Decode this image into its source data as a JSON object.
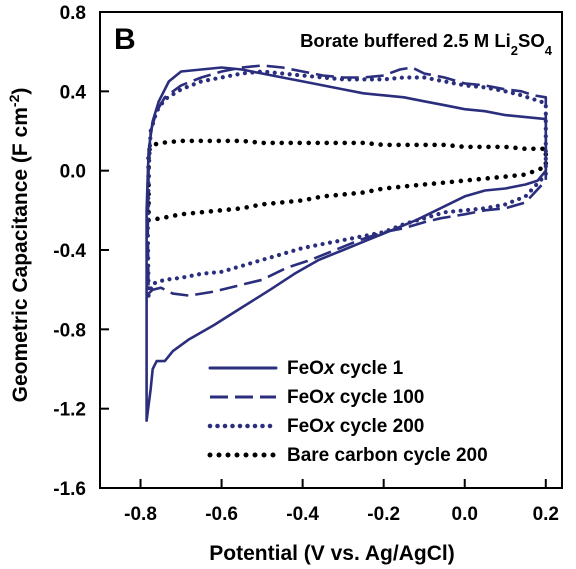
{
  "chart_data": {
    "type": "line",
    "panel_label": "B",
    "annotation_main": "Borate buffered 2.5 M Li",
    "annotation_sub1": "2",
    "annotation_mid": "SO",
    "annotation_sub2": "4",
    "xlabel": "Potential (V vs. Ag/AgCl)",
    "ylabel_main": "Geometric Capacitance (F cm",
    "ylabel_sup": "-2",
    "ylabel_end": ")",
    "xlim": [
      -0.9,
      0.24
    ],
    "ylim": [
      -1.6,
      0.8
    ],
    "x_ticks": [
      -0.8,
      -0.6,
      -0.4,
      -0.2,
      0.0,
      0.2
    ],
    "x_tick_labels": [
      "-0.8",
      "-0.6",
      "-0.4",
      "-0.2",
      "0.0",
      "0.2"
    ],
    "y_ticks": [
      0.8,
      0.4,
      0.0,
      -0.4,
      -0.8,
      -1.2,
      -1.6
    ],
    "y_tick_labels": [
      "0.8",
      "0.4",
      "0.0",
      "-0.4",
      "-0.8",
      "-1.2",
      "-1.6"
    ],
    "grid": false,
    "legend_position": "bottom-right",
    "series_color": "#2b2e7d",
    "bare_color": "#000000",
    "series": [
      {
        "name": "FeOx cycle 1",
        "style": "solid",
        "anodic": [
          [
            -0.785,
            -1.26
          ],
          [
            -0.775,
            -1.1
          ],
          [
            -0.77,
            -1.0
          ],
          [
            -0.76,
            -0.96
          ],
          [
            -0.74,
            -0.96
          ],
          [
            -0.72,
            -0.91
          ],
          [
            -0.68,
            -0.85
          ],
          [
            -0.62,
            -0.78
          ],
          [
            -0.55,
            -0.69
          ],
          [
            -0.48,
            -0.6
          ],
          [
            -0.42,
            -0.52
          ],
          [
            -0.36,
            -0.45
          ],
          [
            -0.3,
            -0.4
          ],
          [
            -0.24,
            -0.35
          ],
          [
            -0.18,
            -0.3
          ],
          [
            -0.12,
            -0.25
          ],
          [
            -0.06,
            -0.19
          ],
          [
            0.0,
            -0.13
          ],
          [
            0.05,
            -0.1
          ],
          [
            0.1,
            -0.09
          ],
          [
            0.15,
            -0.07
          ],
          [
            0.18,
            -0.05
          ],
          [
            0.2,
            0.0
          ]
        ],
        "cathodic": [
          [
            0.2,
            0.26
          ],
          [
            0.15,
            0.27
          ],
          [
            0.1,
            0.28
          ],
          [
            0.05,
            0.3
          ],
          [
            0.0,
            0.31
          ],
          [
            -0.05,
            0.33
          ],
          [
            -0.1,
            0.35
          ],
          [
            -0.15,
            0.37
          ],
          [
            -0.2,
            0.38
          ],
          [
            -0.25,
            0.39
          ],
          [
            -0.3,
            0.41
          ],
          [
            -0.35,
            0.43
          ],
          [
            -0.4,
            0.45
          ],
          [
            -0.45,
            0.47
          ],
          [
            -0.5,
            0.49
          ],
          [
            -0.55,
            0.51
          ],
          [
            -0.6,
            0.52
          ],
          [
            -0.65,
            0.51
          ],
          [
            -0.7,
            0.5
          ],
          [
            -0.73,
            0.45
          ],
          [
            -0.755,
            0.35
          ],
          [
            -0.77,
            0.25
          ],
          [
            -0.78,
            0.1
          ],
          [
            -0.785,
            -0.2
          ],
          [
            -0.785,
            -0.5
          ],
          [
            -0.785,
            -0.9
          ],
          [
            -0.785,
            -1.26
          ]
        ]
      },
      {
        "name": "FeOx cycle 100",
        "style": "dashed",
        "anodic": [
          [
            -0.78,
            -0.62
          ],
          [
            -0.77,
            -0.6
          ],
          [
            -0.75,
            -0.59
          ],
          [
            -0.72,
            -0.62
          ],
          [
            -0.68,
            -0.63
          ],
          [
            -0.62,
            -0.61
          ],
          [
            -0.56,
            -0.58
          ],
          [
            -0.5,
            -0.55
          ],
          [
            -0.44,
            -0.49
          ],
          [
            -0.38,
            -0.45
          ],
          [
            -0.32,
            -0.4
          ],
          [
            -0.26,
            -0.35
          ],
          [
            -0.2,
            -0.31
          ],
          [
            -0.15,
            -0.29
          ],
          [
            -0.1,
            -0.26
          ],
          [
            -0.06,
            -0.24
          ],
          [
            0.0,
            -0.22
          ],
          [
            0.05,
            -0.2
          ],
          [
            0.1,
            -0.19
          ],
          [
            0.15,
            -0.16
          ],
          [
            0.2,
            -0.05
          ]
        ],
        "cathodic": [
          [
            0.2,
            0.37
          ],
          [
            0.17,
            0.38
          ],
          [
            0.14,
            0.4
          ],
          [
            0.1,
            0.41
          ],
          [
            0.05,
            0.43
          ],
          [
            0.0,
            0.44
          ],
          [
            -0.05,
            0.47
          ],
          [
            -0.1,
            0.49
          ],
          [
            -0.13,
            0.52
          ],
          [
            -0.16,
            0.51
          ],
          [
            -0.2,
            0.48
          ],
          [
            -0.25,
            0.47
          ],
          [
            -0.3,
            0.47
          ],
          [
            -0.35,
            0.48
          ],
          [
            -0.4,
            0.5
          ],
          [
            -0.45,
            0.52
          ],
          [
            -0.5,
            0.53
          ],
          [
            -0.55,
            0.52
          ],
          [
            -0.6,
            0.5
          ],
          [
            -0.65,
            0.47
          ],
          [
            -0.7,
            0.43
          ],
          [
            -0.74,
            0.37
          ],
          [
            -0.76,
            0.3
          ],
          [
            -0.775,
            0.2
          ],
          [
            -0.78,
            0.0
          ],
          [
            -0.782,
            -0.3
          ],
          [
            -0.78,
            -0.62
          ]
        ]
      },
      {
        "name": "FeOx cycle 200",
        "style": "dotted",
        "anodic": [
          [
            -0.78,
            -0.63
          ],
          [
            -0.77,
            -0.57
          ],
          [
            -0.74,
            -0.55
          ],
          [
            -0.7,
            -0.54
          ],
          [
            -0.65,
            -0.52
          ],
          [
            -0.6,
            -0.51
          ],
          [
            -0.55,
            -0.48
          ],
          [
            -0.5,
            -0.45
          ],
          [
            -0.45,
            -0.42
          ],
          [
            -0.4,
            -0.39
          ],
          [
            -0.35,
            -0.37
          ],
          [
            -0.3,
            -0.35
          ],
          [
            -0.25,
            -0.33
          ],
          [
            -0.2,
            -0.31
          ],
          [
            -0.15,
            -0.27
          ],
          [
            -0.1,
            -0.24
          ],
          [
            -0.05,
            -0.21
          ],
          [
            0.0,
            -0.2
          ],
          [
            0.05,
            -0.19
          ],
          [
            0.1,
            -0.17
          ],
          [
            0.15,
            -0.13
          ],
          [
            0.2,
            -0.02
          ]
        ],
        "cathodic": [
          [
            0.2,
            0.34
          ],
          [
            0.17,
            0.36
          ],
          [
            0.14,
            0.38
          ],
          [
            0.1,
            0.4
          ],
          [
            0.05,
            0.42
          ],
          [
            0.0,
            0.43
          ],
          [
            -0.05,
            0.45
          ],
          [
            -0.1,
            0.47
          ],
          [
            -0.15,
            0.47
          ],
          [
            -0.2,
            0.46
          ],
          [
            -0.25,
            0.46
          ],
          [
            -0.3,
            0.46
          ],
          [
            -0.35,
            0.47
          ],
          [
            -0.4,
            0.48
          ],
          [
            -0.45,
            0.49
          ],
          [
            -0.5,
            0.5
          ],
          [
            -0.55,
            0.49
          ],
          [
            -0.6,
            0.47
          ],
          [
            -0.65,
            0.45
          ],
          [
            -0.7,
            0.41
          ],
          [
            -0.74,
            0.36
          ],
          [
            -0.76,
            0.3
          ],
          [
            -0.775,
            0.2
          ],
          [
            -0.78,
            0.0
          ],
          [
            -0.782,
            -0.3
          ],
          [
            -0.78,
            -0.63
          ]
        ]
      },
      {
        "name": "Bare carbon cycle 200",
        "style": "dotted-black",
        "anodic": [
          [
            -0.78,
            -0.25
          ],
          [
            -0.75,
            -0.24
          ],
          [
            -0.7,
            -0.22
          ],
          [
            -0.65,
            -0.21
          ],
          [
            -0.6,
            -0.2
          ],
          [
            -0.55,
            -0.19
          ],
          [
            -0.5,
            -0.17
          ],
          [
            -0.45,
            -0.16
          ],
          [
            -0.4,
            -0.15
          ],
          [
            -0.35,
            -0.13
          ],
          [
            -0.3,
            -0.12
          ],
          [
            -0.25,
            -0.11
          ],
          [
            -0.2,
            -0.09
          ],
          [
            -0.15,
            -0.08
          ],
          [
            -0.1,
            -0.07
          ],
          [
            -0.05,
            -0.06
          ],
          [
            0.0,
            -0.05
          ],
          [
            0.05,
            -0.04
          ],
          [
            0.1,
            -0.03
          ],
          [
            0.15,
            -0.02
          ],
          [
            0.2,
            0.02
          ]
        ],
        "cathodic": [
          [
            0.2,
            0.11
          ],
          [
            0.15,
            0.11
          ],
          [
            0.1,
            0.12
          ],
          [
            0.05,
            0.12
          ],
          [
            0.0,
            0.12
          ],
          [
            -0.05,
            0.13
          ],
          [
            -0.1,
            0.13
          ],
          [
            -0.15,
            0.13
          ],
          [
            -0.2,
            0.13
          ],
          [
            -0.25,
            0.14
          ],
          [
            -0.3,
            0.14
          ],
          [
            -0.35,
            0.14
          ],
          [
            -0.4,
            0.14
          ],
          [
            -0.45,
            0.14
          ],
          [
            -0.5,
            0.14
          ],
          [
            -0.55,
            0.15
          ],
          [
            -0.6,
            0.15
          ],
          [
            -0.65,
            0.15
          ],
          [
            -0.7,
            0.15
          ],
          [
            -0.75,
            0.14
          ],
          [
            -0.77,
            0.13
          ],
          [
            -0.78,
            0.1
          ],
          [
            -0.78,
            -0.1
          ],
          [
            -0.78,
            -0.25
          ]
        ]
      }
    ]
  }
}
